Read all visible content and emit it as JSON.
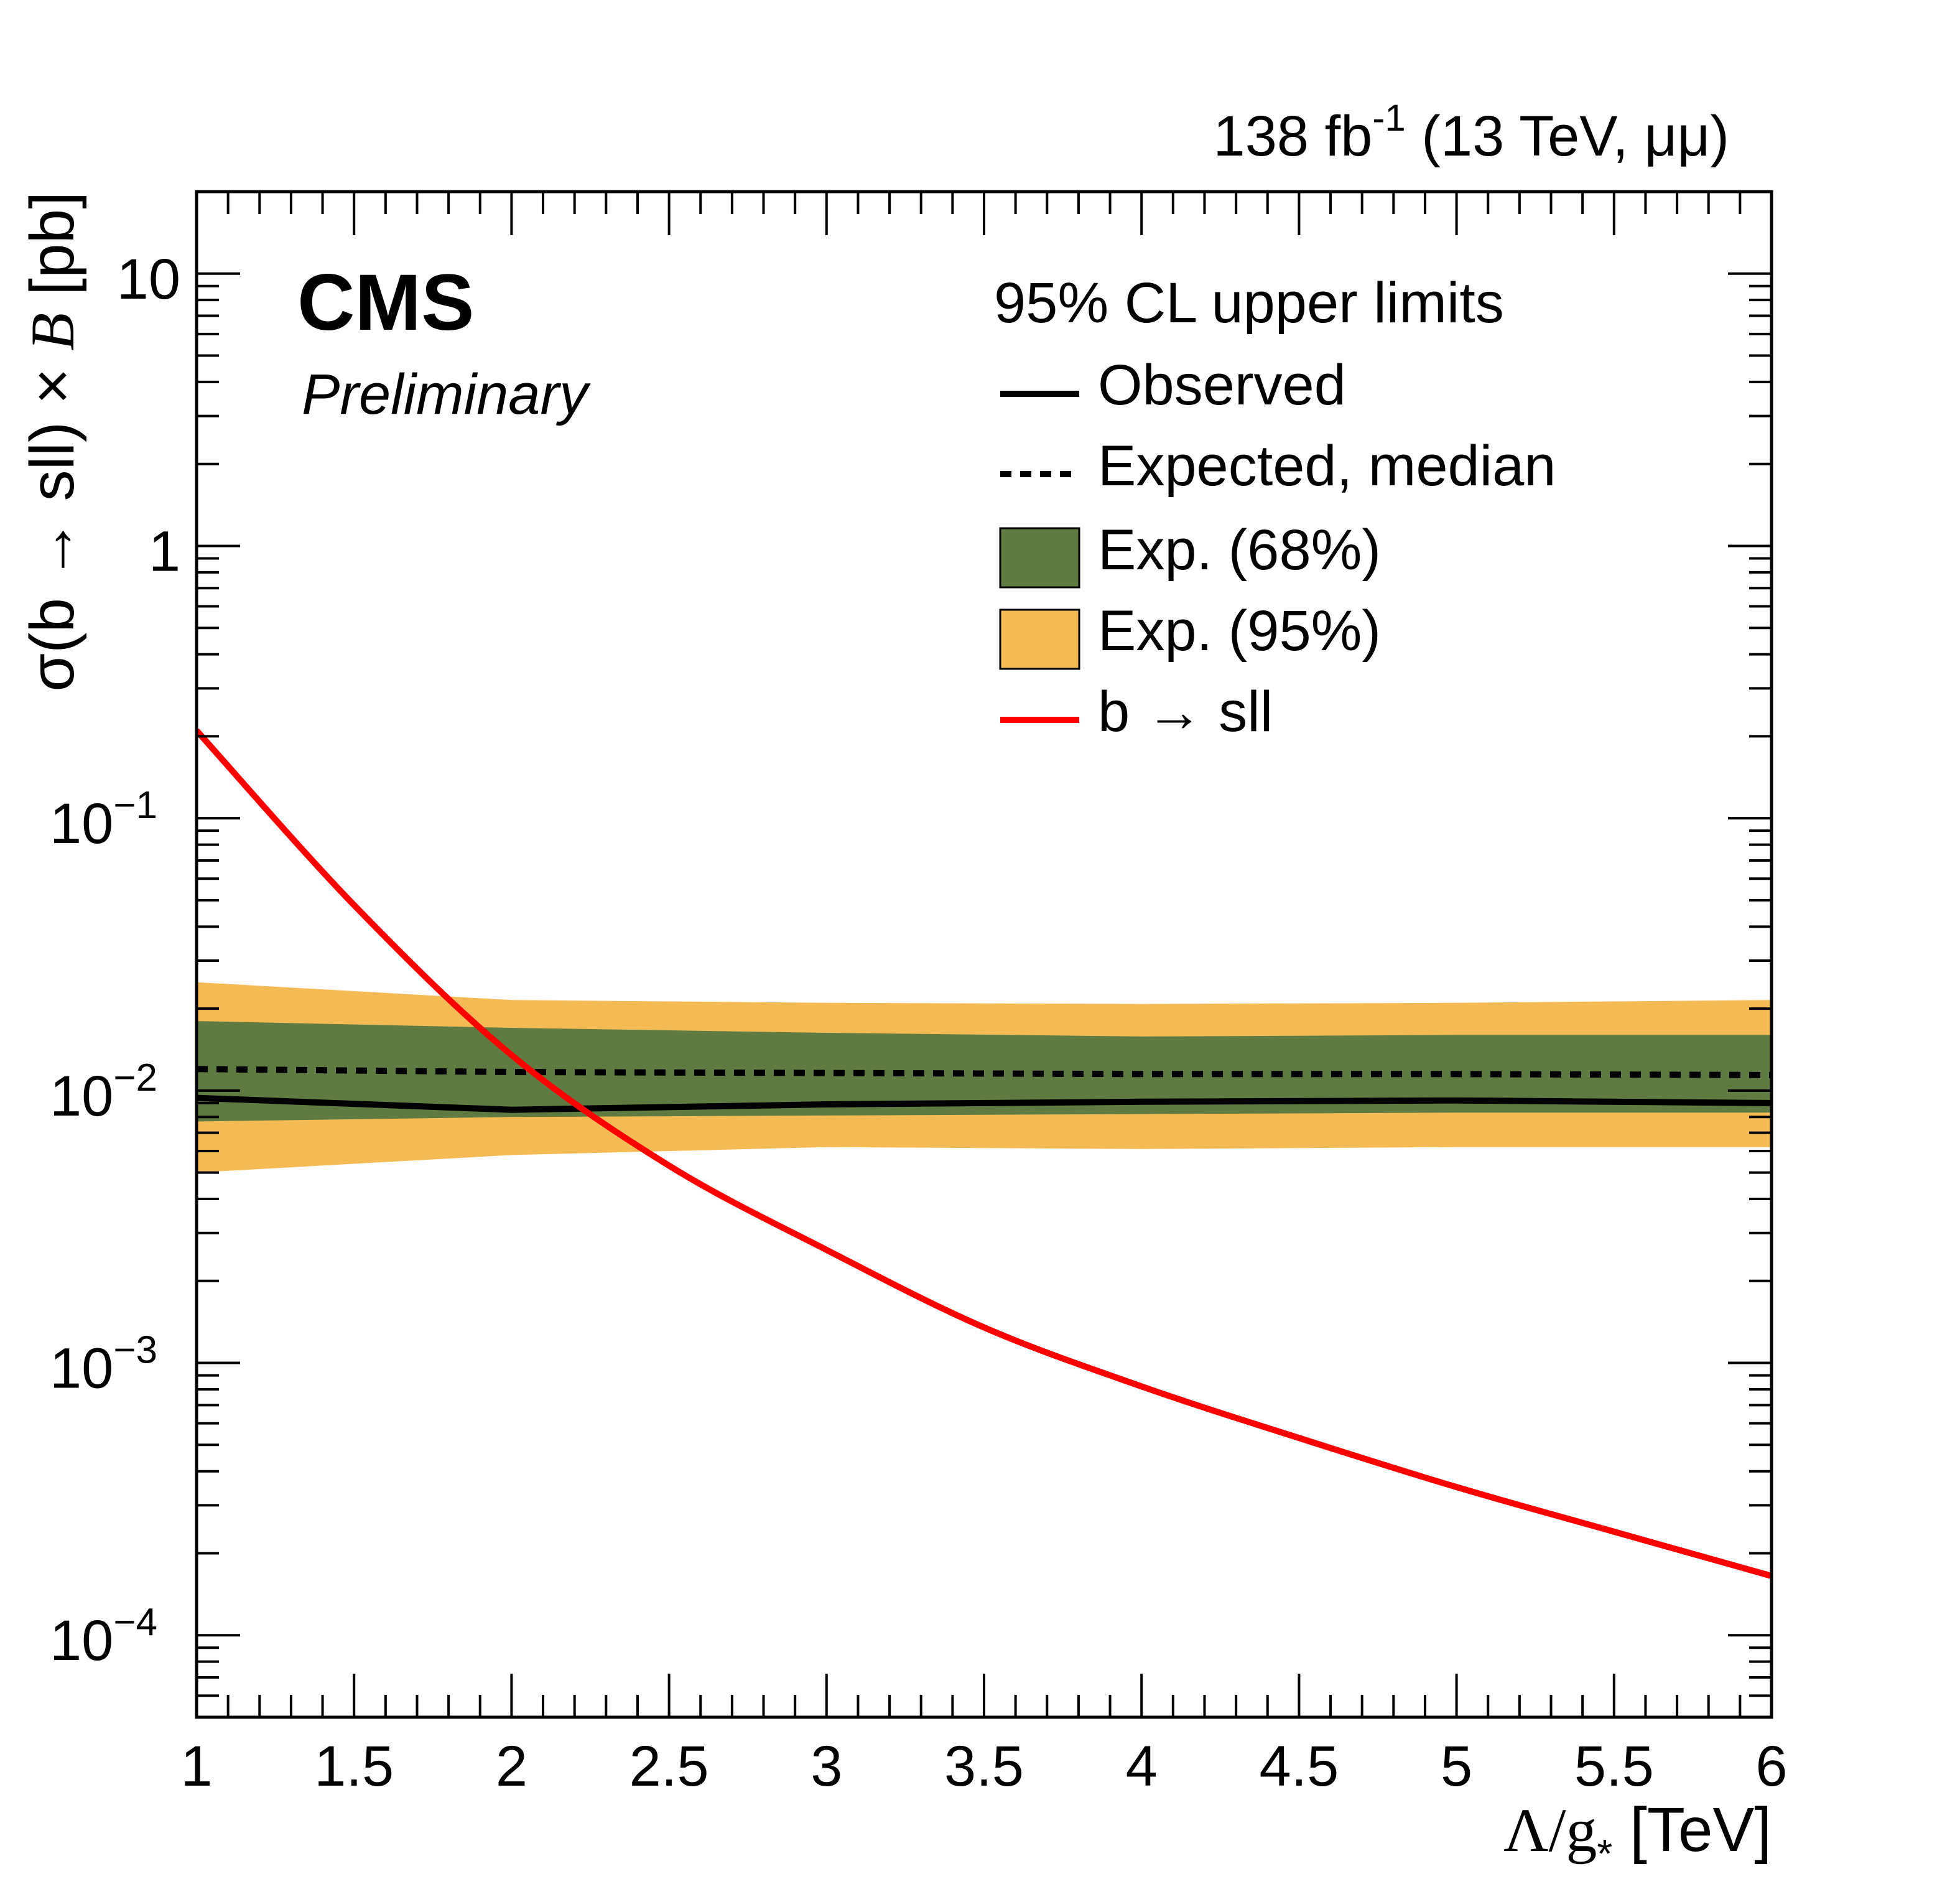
{
  "chart_data": {
    "type": "line",
    "lumi_label": {
      "pre": "138 fb",
      "exp": "-1",
      "post": " (13 TeV, μμ)"
    },
    "experiment": "CMS",
    "status": "Preliminary",
    "xlabel": {
      "main": "Λ/g",
      "sub": "*",
      "unit": " [TeV]"
    },
    "ylabel": {
      "pre": "σ(b → sll) × ",
      "italic": "B",
      "post": " [pb]"
    },
    "x_scale": "linear",
    "y_scale": "log",
    "xlim": [
      1,
      6
    ],
    "ylim": [
      5e-05,
      20
    ],
    "x_ticks": [
      "1",
      "1.5",
      "2",
      "2.5",
      "3",
      "3.5",
      "4",
      "4.5",
      "5",
      "5.5",
      "6"
    ],
    "y_ticks": [
      {
        "value": 0.0001,
        "base": "10",
        "exp": "−4"
      },
      {
        "value": 0.001,
        "base": "10",
        "exp": "−3"
      },
      {
        "value": 0.01,
        "base": "10",
        "exp": "−2"
      },
      {
        "value": 0.1,
        "base": "10",
        "exp": "−1"
      },
      {
        "value": 1,
        "base": "1",
        "exp": ""
      },
      {
        "value": 10,
        "base": "10",
        "exp": ""
      }
    ],
    "legend": {
      "title": "95% CL upper limits",
      "placement": "top-right",
      "entries": [
        {
          "label": "Observed",
          "style": "solid-line",
          "color": "#000000"
        },
        {
          "label": "Expected, median",
          "style": "dashed-line",
          "color": "#000000"
        },
        {
          "label": "Exp. (68%)",
          "style": "box",
          "color": "#607B41"
        },
        {
          "label": "Exp. (95%)",
          "style": "box",
          "color": "#F4BB55"
        },
        {
          "label": "b → sll",
          "style": "solid-line",
          "color": "#FF0000"
        }
      ]
    },
    "x": [
      1,
      2,
      3,
      4,
      5,
      6
    ],
    "series": [
      {
        "name": "Observed",
        "kind": "line",
        "color": "#000000",
        "dash": false,
        "values": [
          0.0094,
          0.0085,
          0.0089,
          0.0091,
          0.0092,
          0.009
        ]
      },
      {
        "name": "Expected, median",
        "kind": "line",
        "color": "#000000",
        "dash": true,
        "values": [
          0.012,
          0.0117,
          0.0116,
          0.0115,
          0.0115,
          0.0114
        ]
      },
      {
        "name": "Exp. (68%)",
        "kind": "band",
        "color": "#607B41",
        "low": [
          0.0077,
          0.008,
          0.0081,
          0.0082,
          0.0083,
          0.0083
        ],
        "high": [
          0.018,
          0.017,
          0.0163,
          0.0158,
          0.016,
          0.016
        ]
      },
      {
        "name": "Exp. (95%)",
        "kind": "band",
        "color": "#F4BB55",
        "low": [
          0.005,
          0.0058,
          0.0062,
          0.0061,
          0.0062,
          0.0062
        ],
        "high": [
          0.025,
          0.0215,
          0.021,
          0.0208,
          0.021,
          0.0215
        ]
      },
      {
        "name": "b → sll",
        "kind": "line",
        "color": "#FF0000",
        "dash": false,
        "x": [
          1,
          1.5,
          2,
          2.5,
          3,
          3.5,
          4,
          4.5,
          5,
          5.5,
          6
        ],
        "values": [
          0.21,
          0.048,
          0.0135,
          0.0053,
          0.0026,
          0.00135,
          0.00082,
          0.00053,
          0.00035,
          0.00024,
          0.000165
        ]
      }
    ],
    "grid": false
  }
}
